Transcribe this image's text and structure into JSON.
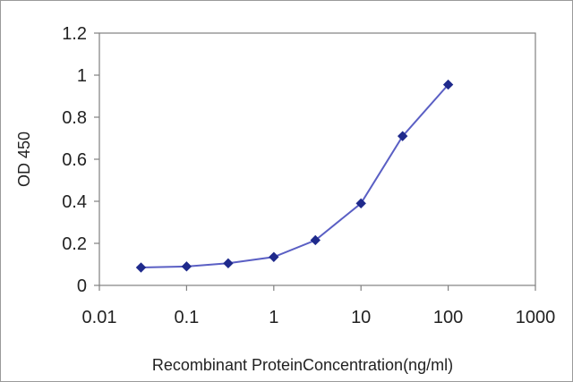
{
  "chart_data": {
    "type": "line",
    "title": "",
    "xlabel": "Recombinant ProteinConcentration(ng/ml)",
    "ylabel": "OD 450",
    "x_scale": "log",
    "xlim": [
      0.01,
      1000
    ],
    "ylim": [
      0,
      1.2
    ],
    "x_ticks": [
      "0.01",
      "0.1",
      "1",
      "10",
      "100",
      "1000"
    ],
    "y_ticks": [
      "0",
      "0.2",
      "0.4",
      "0.6",
      "0.8",
      "1",
      "1.2"
    ],
    "grid": false,
    "legend": "none",
    "series": [
      {
        "color": "#1f2a8c",
        "marker": "diamond",
        "points": [
          {
            "x": 0.03,
            "y": 0.085
          },
          {
            "x": 0.1,
            "y": 0.09
          },
          {
            "x": 0.3,
            "y": 0.105
          },
          {
            "x": 1,
            "y": 0.135
          },
          {
            "x": 3,
            "y": 0.215
          },
          {
            "x": 10,
            "y": 0.39
          },
          {
            "x": 30,
            "y": 0.71
          },
          {
            "x": 100,
            "y": 0.955
          }
        ]
      }
    ]
  }
}
